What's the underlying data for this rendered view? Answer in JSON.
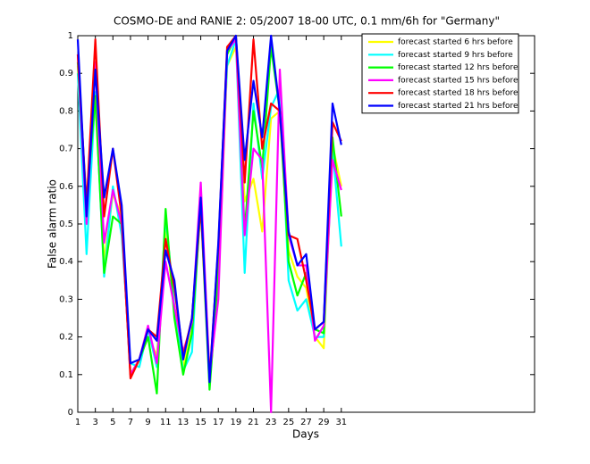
{
  "chart_data": {
    "type": "line",
    "title": "COSMO-DE and RANIE 2: 05/2007 18-00 UTC, 0.1 mm/6h for \"Germany\"",
    "xlabel": "Days",
    "ylabel": "False alarm ratio",
    "x": [
      1,
      2,
      3,
      4,
      5,
      6,
      7,
      8,
      9,
      10,
      11,
      12,
      13,
      14,
      15,
      16,
      17,
      18,
      19,
      20,
      21,
      22,
      23,
      24,
      25,
      26,
      27,
      28,
      29,
      30,
      31
    ],
    "xlim": [
      1,
      53
    ],
    "ylim": [
      0,
      1
    ],
    "xticks": [
      1,
      3,
      5,
      7,
      9,
      11,
      13,
      15,
      17,
      19,
      21,
      23,
      25,
      27,
      29,
      31
    ],
    "yticks": [
      0,
      0.1,
      0.2,
      0.3,
      0.4,
      0.5,
      0.6,
      0.7,
      0.8,
      0.9,
      1
    ],
    "legend": "upper right",
    "series": [
      {
        "name": "forecast started 6 hrs before",
        "color": "#ffff00",
        "values": [
          0.92,
          0.54,
          0.82,
          0.4,
          0.58,
          0.52,
          0.1,
          0.14,
          0.2,
          0.15,
          0.48,
          0.28,
          0.12,
          0.22,
          0.55,
          0.08,
          0.33,
          0.92,
          0.97,
          0.56,
          0.62,
          0.48,
          0.78,
          0.8,
          0.43,
          0.36,
          0.33,
          0.2,
          0.17,
          0.71,
          0.6
        ]
      },
      {
        "name": "forecast started 9 hrs before",
        "color": "#00ffff",
        "values": [
          0.9,
          0.42,
          0.85,
          0.36,
          0.6,
          0.47,
          0.13,
          0.12,
          0.22,
          0.12,
          0.52,
          0.28,
          0.11,
          0.16,
          0.58,
          0.07,
          0.39,
          0.92,
          0.99,
          0.37,
          0.82,
          0.62,
          0.81,
          0.86,
          0.35,
          0.27,
          0.3,
          0.2,
          0.2,
          0.7,
          0.44
        ]
      },
      {
        "name": "forecast started 12 hrs before",
        "color": "#00ff00",
        "values": [
          0.93,
          0.55,
          0.84,
          0.37,
          0.52,
          0.5,
          0.1,
          0.14,
          0.2,
          0.05,
          0.54,
          0.25,
          0.1,
          0.21,
          0.55,
          0.06,
          0.37,
          0.95,
          1.0,
          0.48,
          0.8,
          0.65,
          0.97,
          0.8,
          0.4,
          0.31,
          0.37,
          0.22,
          0.21,
          0.73,
          0.52
        ]
      },
      {
        "name": "forecast started 15 hrs before",
        "color": "#ff00ff",
        "values": [
          0.95,
          0.5,
          0.93,
          0.45,
          0.59,
          0.5,
          0.1,
          0.14,
          0.23,
          0.13,
          0.4,
          0.28,
          0.16,
          0.24,
          0.61,
          0.1,
          0.3,
          0.96,
          0.99,
          0.47,
          0.7,
          0.67,
          0.0,
          0.91,
          0.47,
          0.39,
          0.39,
          0.19,
          0.23,
          0.67,
          0.59
        ]
      },
      {
        "name": "forecast started 18 hrs before",
        "color": "#ff0000",
        "values": [
          0.95,
          0.55,
          0.99,
          0.52,
          0.7,
          0.52,
          0.09,
          0.14,
          0.22,
          0.2,
          0.46,
          0.33,
          0.15,
          0.25,
          0.55,
          0.09,
          0.44,
          0.97,
          1.0,
          0.61,
          0.99,
          0.7,
          0.82,
          0.8,
          0.47,
          0.46,
          0.35,
          0.22,
          0.24,
          0.77,
          0.72
        ]
      },
      {
        "name": "forecast started 21 hrs before",
        "color": "#0000ff",
        "values": [
          0.99,
          0.52,
          0.91,
          0.57,
          0.7,
          0.55,
          0.13,
          0.14,
          0.22,
          0.19,
          0.43,
          0.35,
          0.14,
          0.25,
          0.57,
          0.08,
          0.45,
          0.96,
          1.0,
          0.67,
          0.88,
          0.73,
          1.0,
          0.8,
          0.48,
          0.39,
          0.42,
          0.22,
          0.24,
          0.82,
          0.71
        ]
      }
    ]
  }
}
